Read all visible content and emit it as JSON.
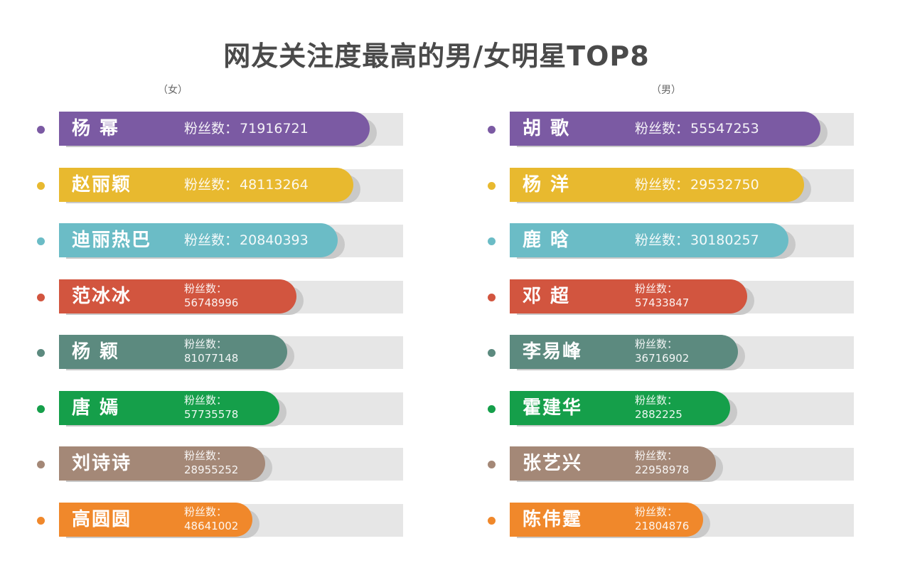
{
  "title": "网友关注度最高的男/女明星TOP8",
  "fans_label": "粉丝数：",
  "groups": {
    "female_label": "（女）",
    "male_label": "（男）"
  },
  "colors": {
    "purple": "#7b5aa3",
    "yellow": "#e8b92f",
    "teal": "#6bbcc6",
    "red": "#d2553f",
    "slate": "#5c8a7f",
    "green": "#159f4a",
    "brown": "#a48877",
    "orange": "#f0882b",
    "track": "#e6e6e6"
  },
  "chart_data": [
    {
      "type": "bar",
      "title": "网友关注度最高的男/女明星TOP8",
      "subtitle": "（女）",
      "categories": [
        "杨 幂",
        "赵丽颖",
        "迪丽热巴",
        "范冰冰",
        "杨 颖",
        "唐 嫣",
        "刘诗诗",
        "高圆圆"
      ],
      "values": [
        71916721,
        48113264,
        20840393,
        56748996,
        81077148,
        57735578,
        28955252,
        48641002
      ],
      "colors": [
        "#7b5aa3",
        "#e8b92f",
        "#6bbcc6",
        "#d2553f",
        "#5c8a7f",
        "#159f4a",
        "#a48877",
        "#f0882b"
      ],
      "bar_length_rank": [
        1,
        2,
        3,
        4,
        5,
        6,
        7,
        8
      ]
    },
    {
      "type": "bar",
      "title": "网友关注度最高的男/女明星TOP8",
      "subtitle": "（男）",
      "categories": [
        "胡 歌",
        "杨 洋",
        "鹿 晗",
        "邓 超",
        "李易峰",
        "霍建华",
        "张艺兴",
        "陈伟霆"
      ],
      "values": [
        55547253,
        29532750,
        30180257,
        57433847,
        36716902,
        2882225,
        22958978,
        21804876
      ],
      "colors": [
        "#7b5aa3",
        "#e8b92f",
        "#6bbcc6",
        "#d2553f",
        "#5c8a7f",
        "#159f4a",
        "#a48877",
        "#f0882b"
      ],
      "bar_length_rank": [
        1,
        2,
        3,
        4,
        5,
        6,
        7,
        8
      ]
    }
  ]
}
